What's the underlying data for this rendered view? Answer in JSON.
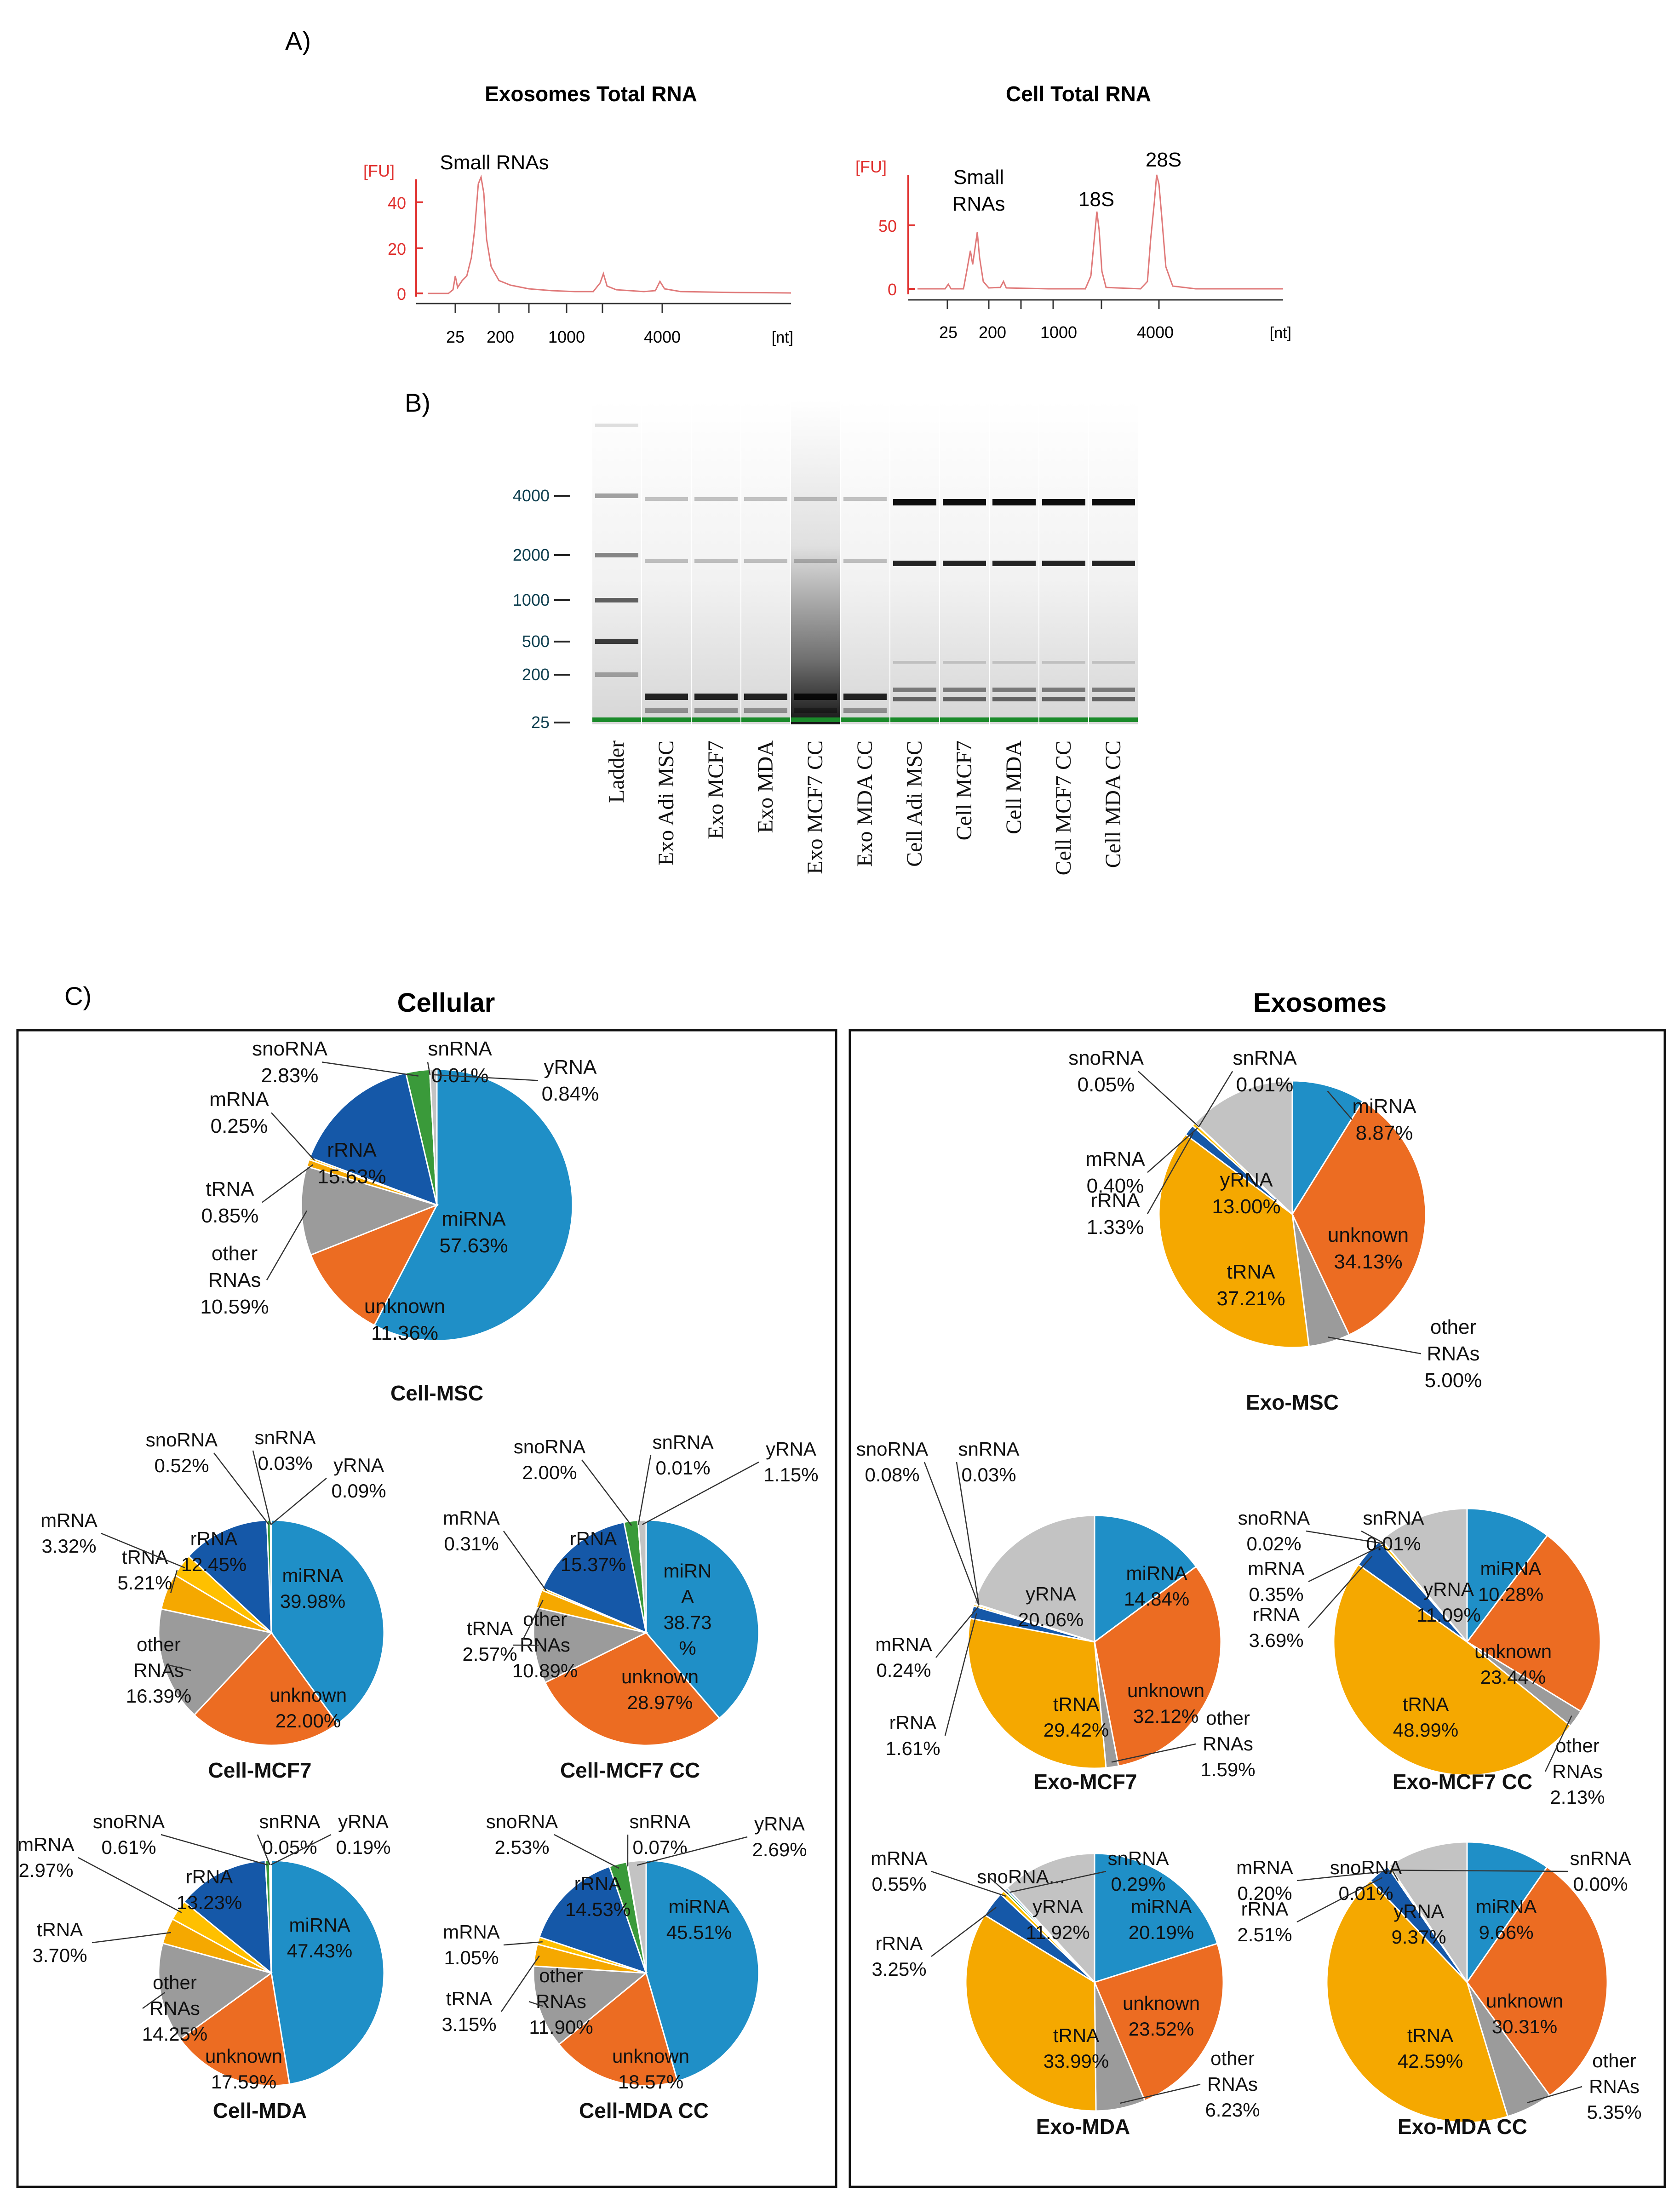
{
  "panel_a": {
    "label": "A)",
    "exo": {
      "title": "Exosomes Total RNA",
      "ylabel": "[FU]",
      "xunit": "[nt]",
      "yticks": [
        "40",
        "20",
        "0"
      ],
      "xticks": [
        "25",
        "200",
        "1000",
        "4000"
      ],
      "peak_label": "Small RNAs"
    },
    "cell": {
      "title": "Cell Total RNA",
      "ylabel": "[FU]",
      "xunit": "[nt]",
      "yticks": [
        "50",
        "0"
      ],
      "xticks": [
        "25",
        "200",
        "1000",
        "4000"
      ],
      "peak_small_1": "Small",
      "peak_small_2": "RNAs",
      "peak_18s": "18S",
      "peak_28s": "28S"
    }
  },
  "panel_b": {
    "label": "B)",
    "ladder_sizes": [
      "4000",
      "2000",
      "1000",
      "500",
      "200",
      "25"
    ],
    "lanes": [
      "Ladder",
      "Exo Adi MSC",
      "Exo MCF7",
      "Exo MDA",
      "Exo MCF7 CC",
      "Exo MDA CC",
      "Cell Adi MSC",
      "Cell MCF7",
      "Cell MDA",
      "Cell MCF7 CC",
      "Cell MDA CC"
    ]
  },
  "panel_c": {
    "label": "C)",
    "cellular_title": "Cellular",
    "exosomes_title": "Exosomes"
  },
  "colors": {
    "miRNA": "#1f8fc7",
    "unknown": "#ec6c22",
    "other RNAs": "#9b9b9b",
    "tRNA": "#f5a800",
    "rRNA": "#1558a8",
    "mRNA": "#ffc000",
    "snoRNA": "#3a9a3a",
    "snRNA": "#8bb9e0",
    "yRNA": "#c3c3c3"
  },
  "chart_data": [
    {
      "type": "pie",
      "title": "Cell-MSC",
      "categories": [
        "miRNA",
        "unknown",
        "other RNAs",
        "tRNA",
        "mRNA",
        "rRNA",
        "snoRNA",
        "snRNA",
        "yRNA"
      ],
      "values": [
        57.63,
        11.36,
        10.59,
        0.85,
        0.25,
        15.63,
        2.83,
        0.01,
        0.84
      ],
      "labels": [
        {
          "name": "miRNA",
          "pct": "57.63%"
        },
        {
          "name": "unknown",
          "pct": "11.36%"
        },
        {
          "name": "other",
          "name2": "RNAs",
          "pct": "10.59%"
        },
        {
          "name": "tRNA",
          "pct": "0.85%"
        },
        {
          "name": "mRNA",
          "pct": "0.25%"
        },
        {
          "name": "rRNA",
          "pct": "15.63%"
        },
        {
          "name": "snoRNA",
          "pct": "2.83%"
        },
        {
          "name": "snRNA",
          "pct": "0.01%"
        },
        {
          "name": "yRNA",
          "pct": "0.84%"
        }
      ]
    },
    {
      "type": "pie",
      "title": "Cell-MCF7",
      "categories": [
        "miRNA",
        "unknown",
        "other RNAs",
        "tRNA",
        "mRNA",
        "rRNA",
        "snoRNA",
        "snRNA",
        "yRNA"
      ],
      "values": [
        39.98,
        22.0,
        16.39,
        5.21,
        3.32,
        12.45,
        0.52,
        0.03,
        0.09
      ],
      "labels": [
        {
          "name": "miRNA",
          "pct": "39.98%"
        },
        {
          "name": "unknown",
          "pct": "22.00%"
        },
        {
          "name": "other",
          "name2": "RNAs",
          "pct": "16.39%"
        },
        {
          "name": "tRNA",
          "pct": "5.21%"
        },
        {
          "name": "mRNA",
          "pct": "3.32%"
        },
        {
          "name": "rRNA",
          "pct": "12.45%"
        },
        {
          "name": "snoRNA",
          "pct": "0.52%"
        },
        {
          "name": "snRNA",
          "pct": "0.03%"
        },
        {
          "name": "yRNA",
          "pct": "0.09%"
        }
      ]
    },
    {
      "type": "pie",
      "title": "Cell-MCF7 CC",
      "categories": [
        "miRNA",
        "unknown",
        "other RNAs",
        "tRNA",
        "mRNA",
        "rRNA",
        "snoRNA",
        "snRNA",
        "yRNA"
      ],
      "values": [
        38.73,
        28.97,
        10.89,
        2.57,
        0.31,
        15.37,
        2.0,
        0.01,
        1.15
      ],
      "labels": [
        {
          "name": "miRN",
          "name2": "A",
          "pct": "38.73",
          "pct2": "%"
        },
        {
          "name": "unknown",
          "pct": "28.97%"
        },
        {
          "name": "other",
          "name2": "RNAs",
          "pct": "10.89%"
        },
        {
          "name": "tRNA",
          "pct": "2.57%"
        },
        {
          "name": "mRNA",
          "pct": "0.31%"
        },
        {
          "name": "rRNA",
          "pct": "15.37%"
        },
        {
          "name": "snoRNA",
          "pct": "2.00%"
        },
        {
          "name": "snRNA",
          "pct": "0.01%"
        },
        {
          "name": "yRNA",
          "pct": "1.15%"
        }
      ]
    },
    {
      "type": "pie",
      "title": "Cell-MDA",
      "categories": [
        "miRNA",
        "unknown",
        "other RNAs",
        "tRNA",
        "mRNA",
        "rRNA",
        "snoRNA",
        "snRNA",
        "yRNA"
      ],
      "values": [
        47.43,
        17.59,
        14.25,
        3.7,
        2.97,
        13.23,
        0.61,
        0.05,
        0.19
      ],
      "labels": [
        {
          "name": "miRNA",
          "pct": "47.43%"
        },
        {
          "name": "unknown",
          "pct": "17.59%"
        },
        {
          "name": "other",
          "name2": "RNAs",
          "pct": "14.25%"
        },
        {
          "name": "tRNA",
          "pct": "3.70%"
        },
        {
          "name": "mRNA",
          "pct": "2.97%"
        },
        {
          "name": "rRNA",
          "pct": "13.23%"
        },
        {
          "name": "snoRNA",
          "pct": "0.61%"
        },
        {
          "name": "snRNA",
          "pct": "0.05%"
        },
        {
          "name": "yRNA",
          "pct": "0.19%"
        }
      ]
    },
    {
      "type": "pie",
      "title": "Cell-MDA CC",
      "categories": [
        "miRNA",
        "unknown",
        "other RNAs",
        "tRNA",
        "mRNA",
        "rRNA",
        "snoRNA",
        "snRNA",
        "yRNA"
      ],
      "values": [
        45.51,
        18.57,
        11.9,
        3.15,
        1.05,
        14.53,
        2.53,
        0.07,
        2.69
      ],
      "labels": [
        {
          "name": "miRNA",
          "pct": "45.51%"
        },
        {
          "name": "unknown",
          "pct": "18.57%"
        },
        {
          "name": "other",
          "name2": "RNAs",
          "pct": "11.90%"
        },
        {
          "name": "tRNA",
          "pct": "3.15%"
        },
        {
          "name": "mRNA",
          "pct": "1.05%"
        },
        {
          "name": "rRNA",
          "pct": "14.53%"
        },
        {
          "name": "snoRNA",
          "pct": "2.53%"
        },
        {
          "name": "snRNA",
          "pct": "0.07%"
        },
        {
          "name": "yRNA",
          "pct": "2.69%"
        }
      ]
    },
    {
      "type": "pie",
      "title": "Exo-MSC",
      "categories": [
        "miRNA",
        "unknown",
        "other RNAs",
        "tRNA",
        "rRNA",
        "mRNA",
        "snoRNA",
        "snRNA",
        "yRNA"
      ],
      "values": [
        8.87,
        34.13,
        5.0,
        37.21,
        1.33,
        0.4,
        0.05,
        0.01,
        13.0
      ],
      "labels": [
        {
          "name": "miRNA",
          "pct": "8.87%"
        },
        {
          "name": "unknown",
          "pct": "34.13%"
        },
        {
          "name": "other",
          "name2": "RNAs",
          "pct": "5.00%"
        },
        {
          "name": "tRNA",
          "pct": "37.21%"
        },
        {
          "name": "rRNA",
          "pct": "1.33%"
        },
        {
          "name": "mRNA",
          "pct": "0.40%"
        },
        {
          "name": "snoRNA",
          "pct": "0.05%"
        },
        {
          "name": "snRNA",
          "pct": "0.01%"
        },
        {
          "name": "yRNA",
          "pct": "13.00%"
        }
      ]
    },
    {
      "type": "pie",
      "title": "Exo-MCF7",
      "categories": [
        "miRNA",
        "unknown",
        "other RNAs",
        "tRNA",
        "rRNA",
        "mRNA",
        "snoRNA",
        "snRNA",
        "yRNA"
      ],
      "values": [
        14.84,
        32.12,
        1.59,
        29.42,
        1.61,
        0.24,
        0.08,
        0.03,
        20.06
      ],
      "labels": [
        {
          "name": "miRNA",
          "pct": "14.84%"
        },
        {
          "name": "unknown",
          "pct": "32.12%"
        },
        {
          "name": "other",
          "name2": "RNAs",
          "pct": "1.59%"
        },
        {
          "name": "tRNA",
          "pct": "29.42%"
        },
        {
          "name": "rRNA",
          "pct": "1.61%"
        },
        {
          "name": "mRNA",
          "pct": "0.24%"
        },
        {
          "name": "snoRNA",
          "pct": "0.08%"
        },
        {
          "name": "snRNA",
          "pct": "0.03%"
        },
        {
          "name": "yRNA",
          "pct": "20.06%"
        }
      ]
    },
    {
      "type": "pie",
      "title": "Exo-MCF7 CC",
      "categories": [
        "miRNA",
        "unknown",
        "other RNAs",
        "tRNA",
        "rRNA",
        "mRNA",
        "snoRNA",
        "snRNA",
        "yRNA"
      ],
      "values": [
        10.28,
        23.44,
        2.13,
        48.99,
        3.69,
        0.35,
        0.02,
        0.01,
        11.09
      ],
      "labels": [
        {
          "name": "miRNA",
          "pct": "10.28%"
        },
        {
          "name": "unknown",
          "pct": "23.44%"
        },
        {
          "name": "other",
          "name2": "RNAs",
          "pct": "2.13%"
        },
        {
          "name": "tRNA",
          "pct": "48.99%"
        },
        {
          "name": "rRNA",
          "pct": "3.69%"
        },
        {
          "name": "mRNA",
          "pct": "0.35%"
        },
        {
          "name": "snoRNA",
          "pct": "0.02%"
        },
        {
          "name": "snRNA",
          "pct": "0.01%"
        },
        {
          "name": "yRNA",
          "pct": "11.09%"
        }
      ]
    },
    {
      "type": "pie",
      "title": "Exo-MDA",
      "categories": [
        "miRNA",
        "unknown",
        "other RNAs",
        "tRNA",
        "rRNA",
        "mRNA",
        "snoRNA",
        "snRNA",
        "yRNA"
      ],
      "values": [
        20.19,
        23.52,
        6.23,
        33.99,
        3.25,
        0.55,
        0.29,
        0.29,
        11.92
      ],
      "labels": [
        {
          "name": "miRNA",
          "pct": "20.19%"
        },
        {
          "name": "unknown",
          "pct": "23.52%"
        },
        {
          "name": "other",
          "name2": "RNAs",
          "pct": "6.23%"
        },
        {
          "name": "tRNA",
          "pct": "33.99%"
        },
        {
          "name": "rRNA",
          "pct": "3.25%"
        },
        {
          "name": "mRNA",
          "pct": "0.55%"
        },
        {
          "name": "snoRNA...",
          "pct": ""
        },
        {
          "name": "snRNA",
          "pct": "0.29%"
        },
        {
          "name": "yRNA",
          "pct": "11.92%"
        }
      ]
    },
    {
      "type": "pie",
      "title": "Exo-MDA CC",
      "categories": [
        "miRNA",
        "unknown",
        "other RNAs",
        "tRNA",
        "rRNA",
        "mRNA",
        "snoRNA",
        "snRNA",
        "yRNA"
      ],
      "values": [
        9.66,
        30.31,
        5.35,
        42.59,
        2.51,
        0.2,
        0.01,
        0.0,
        9.37
      ],
      "labels": [
        {
          "name": "miRNA",
          "pct": "9.66%"
        },
        {
          "name": "unknown",
          "pct": "30.31%"
        },
        {
          "name": "other",
          "name2": "RNAs",
          "pct": "5.35%"
        },
        {
          "name": "tRNA",
          "pct": "42.59%"
        },
        {
          "name": "rRNA",
          "pct": "2.51%"
        },
        {
          "name": "mRNA",
          "pct": "0.20%"
        },
        {
          "name": "snoRNA",
          "pct": "0.01%"
        },
        {
          "name": "snRNA",
          "pct": "0.00%"
        },
        {
          "name": "yRNA",
          "pct": "9.37%"
        }
      ]
    }
  ]
}
